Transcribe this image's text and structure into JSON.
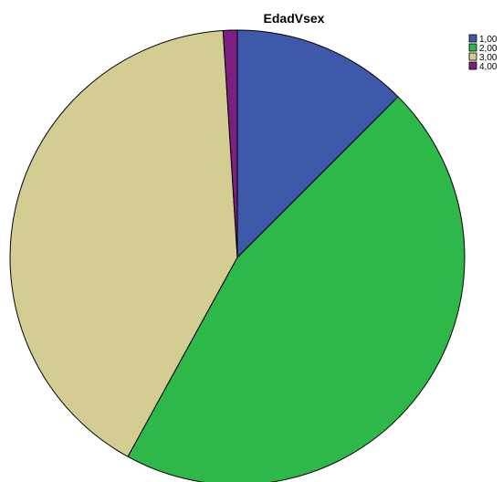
{
  "chart_data": {
    "type": "pie",
    "title": "EdadVsex",
    "slices": [
      {
        "label": "1,00",
        "value": 12.5,
        "color": "#3F59AA"
      },
      {
        "label": "2,00",
        "value": 45.5,
        "color": "#2EB84A"
      },
      {
        "label": "3,00",
        "value": 41.0,
        "color": "#D3CD94"
      },
      {
        "label": "4,00",
        "value": 1.0,
        "color": "#7B2080"
      }
    ],
    "start_angle": "12 o'clock",
    "direction": "clockwise",
    "legend": {
      "placement": "top-right",
      "entries": [
        "1,00",
        "2,00",
        "3,00",
        "4,00"
      ]
    }
  }
}
